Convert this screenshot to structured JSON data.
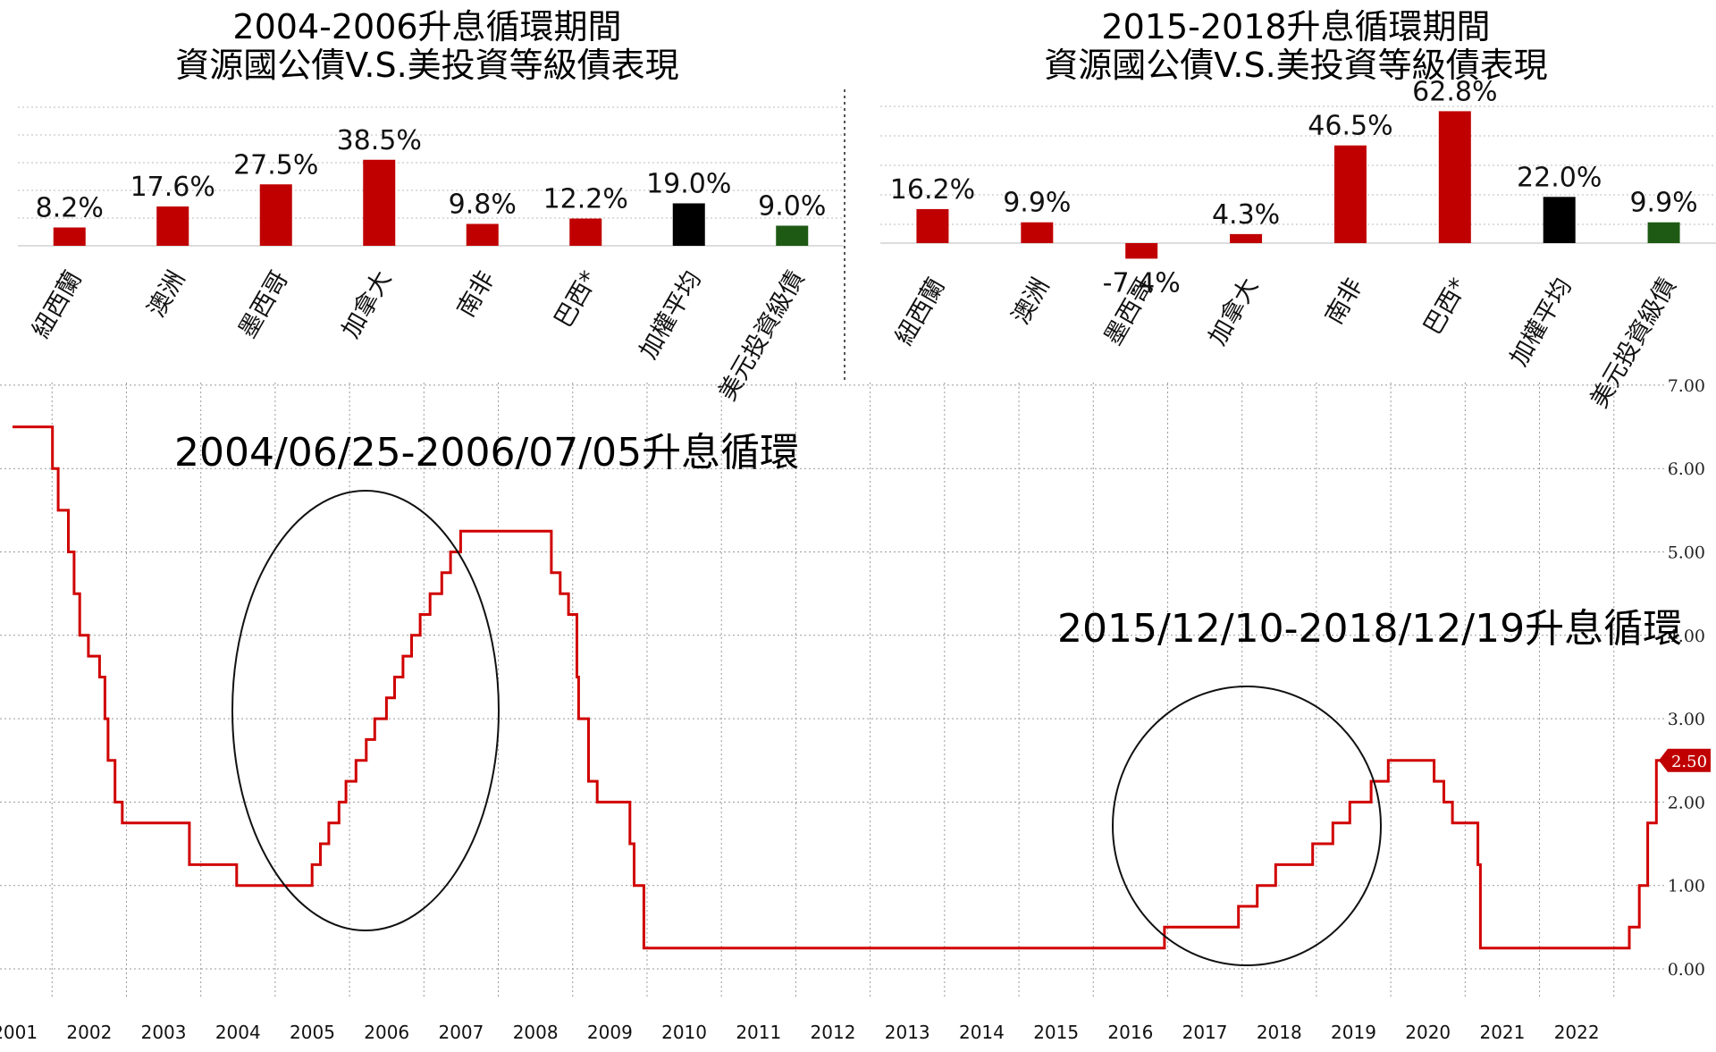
{
  "chart_data": [
    {
      "type": "bar",
      "title": "2004-2006升息循環期間",
      "subtitle": "資源國公債V.S.美投資等級債表現",
      "categories": [
        "紐西蘭",
        "澳洲",
        "墨西哥",
        "加拿大",
        "南非",
        "巴西*",
        "加權平均",
        "美元投資級債"
      ],
      "values": [
        8.2,
        17.6,
        27.5,
        38.5,
        9.8,
        12.2,
        19.0,
        9.0
      ],
      "labels": [
        "8.2%",
        "17.6%",
        "27.5%",
        "38.5%",
        "9.8%",
        "12.2%",
        "19.0%",
        "9.0%"
      ],
      "colors": [
        "#c00000",
        "#c00000",
        "#c00000",
        "#c00000",
        "#c00000",
        "#c00000",
        "#000000",
        "#1e5a14"
      ],
      "grid": true
    },
    {
      "type": "bar",
      "title": "2015-2018升息循環期間",
      "subtitle": "資源國公債V.S.美投資等級債表現",
      "categories": [
        "紐西蘭",
        "澳洲",
        "墨西哥",
        "加拿大",
        "南非",
        "巴西*",
        "加權平均",
        "美元投資級債"
      ],
      "values": [
        16.2,
        9.9,
        -7.4,
        4.3,
        46.5,
        62.8,
        22.0,
        9.9
      ],
      "labels": [
        "16.2%",
        "9.9%",
        "-7.4%",
        "4.3%",
        "46.5%",
        "62.8%",
        "22.0%",
        "9.9%"
      ],
      "colors": [
        "#c00000",
        "#c00000",
        "#c00000",
        "#c00000",
        "#c00000",
        "#c00000",
        "#000000",
        "#1e5a14"
      ],
      "grid": true
    },
    {
      "type": "line",
      "step": true,
      "color": "#d00000",
      "ylim": [
        0,
        7
      ],
      "yticks": [
        "0.00",
        "1.00",
        "2.00",
        "3.00",
        "4.00",
        "5.00",
        "6.00",
        "7.00"
      ],
      "xlim": [
        2000.3,
        2022.7
      ],
      "xticks": [
        "2001",
        "2002",
        "2003",
        "2004",
        "2005",
        "2006",
        "2007",
        "2008",
        "2009",
        "2010",
        "2011",
        "2012",
        "2013",
        "2014",
        "2015",
        "2016",
        "2017",
        "2018",
        "2019",
        "2020",
        "2021",
        "2022"
      ],
      "last_value": "2.50",
      "grid": true,
      "points": [
        [
          "2000-05-16",
          6.5
        ],
        [
          "2001-01-03",
          6.0
        ],
        [
          "2001-01-31",
          5.5
        ],
        [
          "2001-03-20",
          5.0
        ],
        [
          "2001-04-18",
          4.5
        ],
        [
          "2001-05-15",
          4.0
        ],
        [
          "2001-06-27",
          3.75
        ],
        [
          "2001-08-21",
          3.5
        ],
        [
          "2001-09-17",
          3.0
        ],
        [
          "2001-10-02",
          2.5
        ],
        [
          "2001-11-06",
          2.0
        ],
        [
          "2001-12-11",
          1.75
        ],
        [
          "2002-11-06",
          1.25
        ],
        [
          "2003-06-25",
          1.0
        ],
        [
          "2004-06-30",
          1.25
        ],
        [
          "2004-08-10",
          1.5
        ],
        [
          "2004-09-21",
          1.75
        ],
        [
          "2004-11-10",
          2.0
        ],
        [
          "2004-12-14",
          2.25
        ],
        [
          "2005-02-02",
          2.5
        ],
        [
          "2005-03-22",
          2.75
        ],
        [
          "2005-05-03",
          3.0
        ],
        [
          "2005-06-30",
          3.25
        ],
        [
          "2005-08-09",
          3.5
        ],
        [
          "2005-09-20",
          3.75
        ],
        [
          "2005-11-01",
          4.0
        ],
        [
          "2005-12-13",
          4.25
        ],
        [
          "2006-01-31",
          4.5
        ],
        [
          "2006-03-28",
          4.75
        ],
        [
          "2006-05-10",
          5.0
        ],
        [
          "2006-06-29",
          5.25
        ],
        [
          "2007-09-18",
          4.75
        ],
        [
          "2007-10-31",
          4.5
        ],
        [
          "2007-12-11",
          4.25
        ],
        [
          "2008-01-22",
          3.5
        ],
        [
          "2008-01-30",
          3.0
        ],
        [
          "2008-03-18",
          2.25
        ],
        [
          "2008-04-30",
          2.0
        ],
        [
          "2008-10-08",
          1.5
        ],
        [
          "2008-10-29",
          1.0
        ],
        [
          "2008-12-16",
          0.25
        ],
        [
          "2015-12-16",
          0.5
        ],
        [
          "2016-12-14",
          0.75
        ],
        [
          "2017-03-15",
          1.0
        ],
        [
          "2017-06-14",
          1.25
        ],
        [
          "2017-12-13",
          1.5
        ],
        [
          "2018-03-21",
          1.75
        ],
        [
          "2018-06-13",
          2.0
        ],
        [
          "2018-09-26",
          2.25
        ],
        [
          "2018-12-19",
          2.5
        ],
        [
          "2019-07-31",
          2.25
        ],
        [
          "2019-09-18",
          2.0
        ],
        [
          "2019-10-30",
          1.75
        ],
        [
          "2020-03-03",
          1.25
        ],
        [
          "2020-03-15",
          0.25
        ],
        [
          "2022-03-16",
          0.5
        ],
        [
          "2022-05-04",
          1.0
        ],
        [
          "2022-06-15",
          1.75
        ],
        [
          "2022-07-27",
          2.5
        ],
        [
          "2022-09-01",
          2.5
        ]
      ],
      "annotations": [
        "2004/06/25-2006/07/05升息循環",
        "2015/12/10-2018/12/19升息循環"
      ]
    }
  ]
}
